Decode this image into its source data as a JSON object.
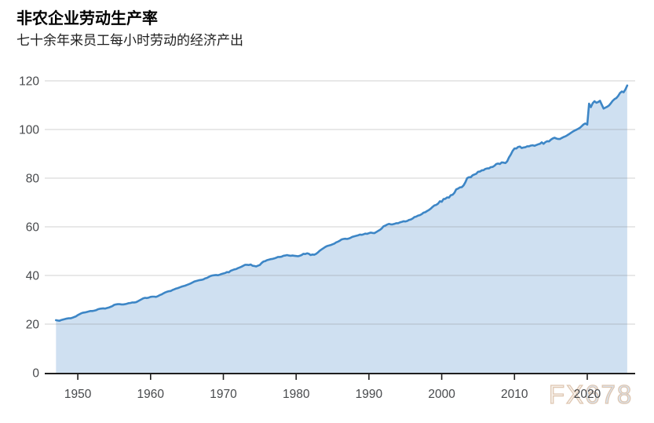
{
  "header": {
    "title": "非农企业劳动生产率",
    "subtitle": "七十余年来员工每小时劳动的经济产出"
  },
  "watermark": {
    "prefix": "FX",
    "suffix": "678"
  },
  "colors": {
    "line": "#3d86c6",
    "fill": "#cfe0f1",
    "grid": "rgba(120,120,120,0.35)",
    "axis": "#1f1f1f",
    "tick_label": "#47494c",
    "title": "#000000",
    "subtitle": "#1f1f1f",
    "watermark_outline": "#d9bda4",
    "watermark_fill_fx": "#f8f3ed",
    "watermark_fill_num": "#d3e1ef"
  },
  "chart_data": {
    "type": "area",
    "title": "非农企业劳动生产率",
    "subtitle": "七十余年来员工每小时劳动的经济产出",
    "xlabel": "",
    "ylabel": "",
    "x_start": 1947.0,
    "x_step": 0.25,
    "xlim": [
      1946,
      2026.8
    ],
    "ylim": [
      0,
      120
    ],
    "x_ticks": [
      1950,
      1960,
      1970,
      1980,
      1990,
      2000,
      2010,
      2020
    ],
    "x_tick_labels": [
      "1950",
      "1960",
      "1970",
      "1980",
      "1990",
      "2000",
      "2010",
      "2020"
    ],
    "y_ticks": [
      0,
      20,
      40,
      60,
      80,
      100,
      120
    ],
    "y_tick_labels": [
      "0",
      "20",
      "40",
      "60",
      "80",
      "100",
      "120"
    ],
    "grid": "horizontal",
    "legend": "none",
    "series": [
      {
        "name": "非农企业劳动生产率",
        "frequency": "quarterly",
        "values": [
          21.6,
          21.5,
          21.4,
          21.7,
          21.9,
          22.1,
          22.3,
          22.4,
          22.4,
          22.6,
          22.9,
          23.2,
          23.7,
          24.1,
          24.5,
          24.7,
          24.8,
          25.0,
          25.2,
          25.4,
          25.4,
          25.5,
          25.7,
          26.1,
          26.3,
          26.4,
          26.5,
          26.4,
          26.6,
          26.8,
          27.1,
          27.4,
          27.9,
          28.1,
          28.2,
          28.2,
          28.1,
          28.1,
          28.2,
          28.4,
          28.6,
          28.7,
          28.9,
          28.9,
          29.0,
          29.4,
          29.8,
          30.2,
          30.6,
          30.8,
          30.7,
          30.9,
          31.2,
          31.3,
          31.3,
          31.2,
          31.5,
          31.9,
          32.2,
          32.6,
          33.0,
          33.3,
          33.5,
          33.6,
          34.0,
          34.3,
          34.6,
          34.8,
          35.1,
          35.4,
          35.6,
          35.8,
          36.1,
          36.4,
          36.7,
          37.1,
          37.5,
          37.7,
          37.9,
          38.1,
          38.2,
          38.4,
          38.8,
          39.0,
          39.4,
          39.8,
          40.0,
          40.1,
          40.2,
          40.1,
          40.3,
          40.6,
          40.8,
          41.0,
          41.4,
          41.3,
          41.9,
          42.2,
          42.5,
          42.6,
          43.0,
          43.3,
          43.6,
          44.0,
          44.4,
          44.4,
          44.3,
          44.5,
          44.0,
          43.9,
          43.7,
          44.0,
          44.3,
          45.1,
          45.7,
          45.9,
          46.3,
          46.5,
          46.7,
          46.8,
          47.0,
          47.3,
          47.6,
          47.6,
          47.7,
          48.1,
          48.2,
          48.4,
          48.2,
          48.1,
          48.2,
          48.1,
          48.0,
          47.9,
          48.1,
          48.4,
          48.9,
          48.8,
          49.1,
          48.9,
          48.4,
          48.6,
          48.5,
          48.9,
          49.5,
          50.2,
          50.7,
          51.2,
          51.7,
          52.1,
          52.3,
          52.5,
          52.8,
          53.1,
          53.6,
          53.9,
          54.3,
          54.8,
          55.0,
          55.1,
          55.0,
          55.2,
          55.5,
          55.9,
          56.1,
          56.3,
          56.5,
          56.8,
          56.7,
          56.9,
          57.2,
          57.1,
          57.4,
          57.6,
          57.5,
          57.4,
          57.8,
          58.3,
          58.7,
          59.3,
          60.2,
          60.5,
          60.9,
          61.2,
          61.0,
          61.0,
          61.2,
          61.5,
          61.5,
          61.8,
          62.0,
          62.3,
          62.2,
          62.4,
          62.8,
          63.0,
          63.4,
          64.0,
          64.2,
          64.6,
          64.8,
          65.2,
          65.8,
          66.0,
          66.5,
          66.9,
          67.5,
          68.2,
          68.8,
          69.0,
          69.5,
          70.5,
          70.3,
          71.4,
          71.5,
          72.1,
          72.0,
          73.0,
          73.2,
          74.0,
          75.4,
          75.7,
          76.2,
          76.3,
          77.0,
          78.3,
          80.0,
          80.4,
          80.4,
          81.2,
          81.5,
          81.8,
          82.6,
          82.7,
          83.2,
          83.3,
          83.8,
          84.0,
          84.0,
          84.5,
          84.6,
          85.1,
          85.8,
          86.0,
          85.8,
          86.5,
          86.4,
          86.2,
          86.9,
          88.5,
          89.7,
          91.2,
          92.2,
          92.2,
          92.8,
          93.0,
          92.4,
          92.6,
          92.7,
          93.1,
          93.1,
          93.4,
          93.5,
          93.3,
          93.6,
          93.9,
          94.1,
          94.7,
          94.1,
          94.8,
          95.2,
          95.1,
          95.8,
          96.3,
          96.6,
          96.3,
          96.1,
          96.1,
          96.5,
          96.9,
          97.2,
          97.6,
          98.1,
          98.6,
          99.1,
          99.5,
          99.9,
          100.3,
          100.7,
          101.4,
          102.1,
          102.5,
          102.0,
          110.6,
          109.2,
          110.8,
          111.6,
          111.0,
          111.3,
          111.8,
          110.2,
          108.6,
          109.0,
          109.4,
          109.9,
          110.8,
          111.8,
          112.5,
          112.9,
          113.8,
          115.0,
          115.6,
          115.3,
          116.5,
          118.1
        ]
      }
    ]
  }
}
